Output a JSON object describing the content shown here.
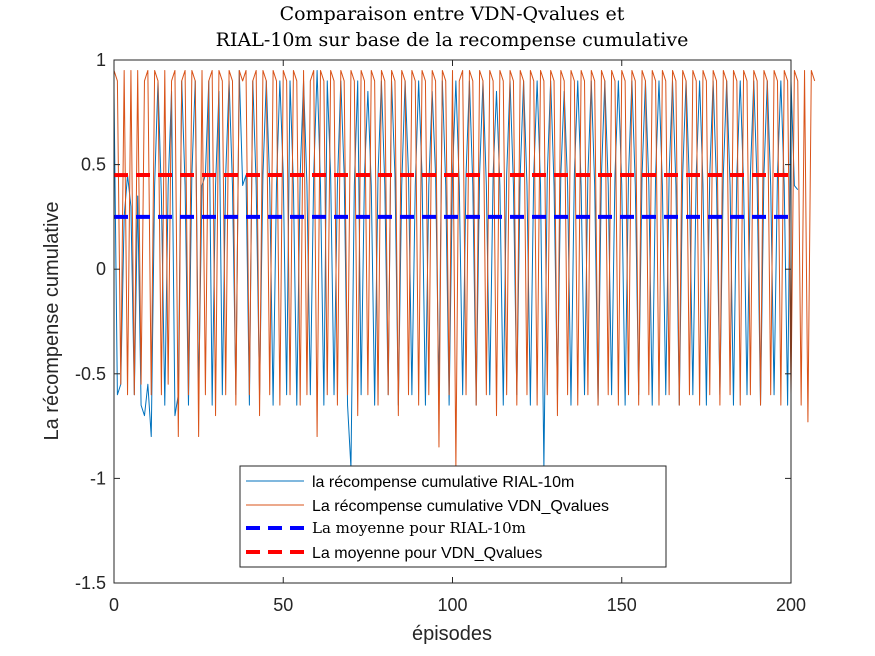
{
  "chart_data": {
    "type": "line",
    "title_lines": [
      "Comparaison entre VDN-Qvalues et",
      "RIAL-10m sur base de la recompense cumulative"
    ],
    "xlabel": "épisodes",
    "ylabel": "La récompense cumulative",
    "xlim": [
      0,
      200
    ],
    "ylim": [
      -1.5,
      1
    ],
    "xticks": [
      0,
      50,
      100,
      150,
      200
    ],
    "yticks": [
      -1.5,
      -1,
      -0.5,
      0,
      0.5,
      1
    ],
    "xtick_labels": [
      "0",
      "50",
      "100",
      "150",
      "200"
    ],
    "ytick_labels": [
      "-1.5",
      "-1",
      "-0.5",
      "0",
      "0.5",
      "1"
    ],
    "grid": false,
    "legend_position": "bottom-center",
    "series": [
      {
        "name": "la récompense cumulative RIAL-10m",
        "color": "#0072BD",
        "style": "solid",
        "values": [
          0.85,
          -0.6,
          -0.55,
          0.25,
          0.45,
          0.3,
          -0.6,
          0.35,
          -0.65,
          -0.7,
          -0.55,
          -0.8,
          0.4,
          0.9,
          0.35,
          -0.65,
          0.4,
          0.85,
          -0.7,
          -0.6,
          0.9,
          0.4,
          -0.65,
          0.45,
          0.9,
          -0.6,
          0.4,
          0.45,
          0.9,
          -0.65,
          0.4,
          0.85,
          -0.6,
          0.45,
          0.9,
          0.4,
          -0.6,
          0.95,
          0.4,
          0.45,
          -0.65,
          0.9,
          0.4,
          -0.6,
          0.45,
          0.9,
          0.4,
          -0.65,
          0.4,
          0.9,
          0.45,
          -0.6,
          0.9,
          0.4,
          -0.65,
          0.45,
          0.9,
          0.4,
          -0.6,
          0.45,
          0.95,
          0.4,
          -0.65,
          0.9,
          0.45,
          -0.6,
          0.4,
          0.9,
          0.45,
          -0.65,
          -0.95,
          0.4,
          0.9,
          -0.6,
          0.45,
          0.85,
          0.4,
          -0.65,
          0.45,
          0.9,
          0.4,
          -0.6,
          0.9,
          0.45,
          -0.65,
          0.4,
          0.9,
          0.45,
          -0.6,
          0.4,
          0.9,
          0.45,
          -0.65,
          0.4,
          0.85,
          0.45,
          -0.6,
          0.9,
          0.4,
          -0.65,
          0.45,
          0.9,
          0.4,
          -0.6,
          0.45,
          0.9,
          0.4,
          -0.65,
          0.45,
          0.9,
          0.4,
          -0.6,
          0.45,
          0.85,
          0.4,
          -0.65,
          0.45,
          0.9,
          0.4,
          -0.6,
          0.45,
          0.9,
          0.4,
          -0.65,
          0.45,
          0.9,
          0.4,
          -0.95,
          0.45,
          0.9,
          0.4,
          -0.6,
          0.45,
          0.85,
          0.4,
          -0.65,
          0.45,
          0.9,
          0.4,
          -0.6,
          0.45,
          0.9,
          0.4,
          -0.65,
          0.45,
          0.9,
          0.4,
          -0.6,
          0.45,
          0.9,
          0.4,
          -0.65,
          0.45,
          0.9,
          0.4,
          -0.6,
          0.45,
          0.9,
          0.4,
          -0.65,
          0.45,
          0.9,
          0.4,
          -0.6,
          0.45,
          0.9,
          0.4,
          -0.65,
          0.45,
          0.9,
          0.4,
          -0.6,
          0.45,
          0.9,
          0.4,
          -0.65,
          0.45,
          0.9,
          0.4,
          -0.6,
          0.45,
          0.9,
          0.4,
          -0.65,
          0.45,
          0.9,
          0.4,
          -0.6,
          0.45,
          0.9,
          0.4,
          -0.65,
          0.45,
          0.9,
          0.4,
          -0.6,
          0.45,
          0.9,
          0.4,
          -0.65,
          0.9,
          0.4,
          0.38
        ]
      },
      {
        "name": "La récompense cumulative VDN_Qvalues",
        "color": "#D95319",
        "style": "solid",
        "values": [
          0.95,
          0.9,
          -0.55,
          0.95,
          -0.6,
          0.95,
          -0.6,
          0.95,
          -0.55,
          0.9,
          0.95,
          -0.6,
          0.95,
          0.9,
          -0.6,
          0.95,
          -0.55,
          0.9,
          0.95,
          -0.8,
          0.9,
          0.95,
          -0.6,
          0.95,
          0.9,
          -0.8,
          0.95,
          -0.6,
          0.9,
          0.95,
          -0.7,
          0.95,
          0.9,
          -0.6,
          0.95,
          0.9,
          -0.65,
          0.95,
          0.9,
          0.95,
          -0.6,
          0.9,
          0.95,
          -0.7,
          0.95,
          0.9,
          -0.6,
          0.95,
          0.9,
          -0.65,
          0.95,
          0.9,
          -0.6,
          0.95,
          0.9,
          -0.65,
          0.95,
          -0.6,
          0.9,
          0.95,
          -0.8,
          0.95,
          0.9,
          -0.6,
          0.95,
          0.9,
          -0.65,
          0.95,
          0.9,
          -0.6,
          0.95,
          0.9,
          -0.7,
          0.95,
          0.9,
          -0.6,
          0.95,
          0.9,
          -0.65,
          0.95,
          0.9,
          -0.6,
          0.95,
          0.9,
          -0.7,
          0.95,
          0.9,
          -0.6,
          0.95,
          0.9,
          -0.65,
          0.95,
          0.9,
          -0.6,
          0.95,
          0.9,
          -0.85,
          0.95,
          0.9,
          -0.6,
          0.95,
          -0.95,
          0.9,
          0.95,
          -0.6,
          0.95,
          0.9,
          -0.65,
          0.95,
          0.9,
          -0.6,
          0.95,
          0.9,
          -0.7,
          0.95,
          0.9,
          -0.6,
          0.95,
          0.9,
          -0.65,
          0.95,
          0.9,
          -0.6,
          0.95,
          0.9,
          -0.65,
          0.95,
          0.9,
          -0.6,
          0.95,
          0.9,
          -0.7,
          0.95,
          0.9,
          -0.6,
          0.95,
          0.9,
          -0.65,
          0.95,
          0.9,
          -0.6,
          0.95,
          0.9,
          -0.65,
          0.95,
          0.9,
          -0.6,
          0.95,
          0.9,
          -0.65,
          0.95,
          0.9,
          -0.6,
          0.95,
          0.9,
          -0.65,
          0.95,
          0.9,
          -0.6,
          0.95,
          0.9,
          -0.65,
          0.95,
          0.9,
          -0.6,
          0.95,
          0.9,
          -0.65,
          0.95,
          0.9,
          -0.6,
          0.95,
          0.9,
          -0.65,
          0.95,
          0.9,
          -0.6,
          0.95,
          0.9,
          -0.65,
          0.95,
          0.9,
          -0.6,
          0.95,
          0.9,
          -0.65,
          0.95,
          0.9,
          -0.6,
          0.95,
          0.9,
          -0.65,
          0.95,
          0.9,
          -0.6,
          0.95,
          0.9,
          -0.65,
          0.95,
          0.9,
          -0.6,
          0.95,
          0.9,
          -0.65,
          0.95,
          -0.73,
          0.95,
          0.9
        ]
      },
      {
        "name": "La moyenne pour RIAL-10m",
        "color": "#0000FF",
        "style": "dashed",
        "constant": 0.25
      },
      {
        "name": "La moyenne pour VDN_Qvalues",
        "color": "#FF0000",
        "style": "dashed",
        "constant": 0.45
      }
    ]
  }
}
